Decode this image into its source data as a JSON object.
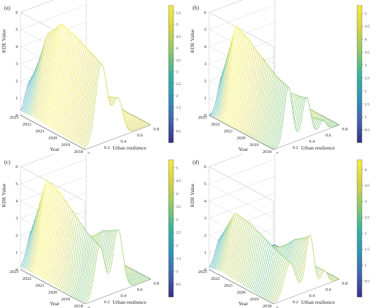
{
  "figure": {
    "panels": [
      "(a)",
      "(b)",
      "(c)",
      "(d)"
    ]
  },
  "colors": {
    "colormap": [
      "#3b2f86",
      "#4467b0",
      "#2f95b8",
      "#3bb39a",
      "#8dc86a",
      "#d8d242",
      "#f4ef3c"
    ],
    "axis": "#333333",
    "grid": "#c8c8c8"
  },
  "chart_data": [
    {
      "type": "surface3d",
      "panel_label": "(a)",
      "zlabel": "KDE Value",
      "xlabel": "Urban resilience",
      "ylabel": "Year",
      "x_ticks": [
        "0",
        "0.2",
        "0.4",
        "0.6",
        "0.8"
      ],
      "y_ticks": [
        "2018",
        "2019",
        "2020",
        "2021",
        "2022",
        "2023"
      ],
      "z_ticks": [
        "0",
        "1",
        "2",
        "3",
        "4",
        "5",
        "6"
      ],
      "xlim": [
        0,
        0.8
      ],
      "zlim": [
        0,
        6
      ],
      "colorbar_ticks": [
        "0.5",
        "1",
        "1.5",
        "2",
        "2.5",
        "3",
        "3.5",
        "4",
        "4.5",
        "5",
        "5.5"
      ],
      "colorbar_range": [
        0,
        5.8
      ],
      "series": [
        {
          "name": "2018",
          "peaks": [
            {
              "x": 0.2,
              "h": 4.6,
              "w": 0.07
            },
            {
              "x": 0.4,
              "h": 2.2,
              "w": 0.06
            }
          ]
        },
        {
          "name": "2019",
          "peaks": [
            {
              "x": 0.2,
              "h": 5.0,
              "w": 0.07
            },
            {
              "x": 0.4,
              "h": 1.9,
              "w": 0.06
            }
          ]
        },
        {
          "name": "2020",
          "peaks": [
            {
              "x": 0.19,
              "h": 5.5,
              "w": 0.07
            },
            {
              "x": 0.4,
              "h": 1.5,
              "w": 0.06
            }
          ]
        },
        {
          "name": "2021",
          "peaks": [
            {
              "x": 0.18,
              "h": 5.8,
              "w": 0.07
            },
            {
              "x": 0.38,
              "h": 1.2,
              "w": 0.06
            }
          ]
        },
        {
          "name": "2022",
          "peaks": [
            {
              "x": 0.17,
              "h": 4.8,
              "w": 0.07
            },
            {
              "x": 0.36,
              "h": 1.3,
              "w": 0.06
            }
          ]
        },
        {
          "name": "2023",
          "peaks": [
            {
              "x": 0.12,
              "h": 1.8,
              "w": 0.06
            },
            {
              "x": 0.28,
              "h": 1.0,
              "w": 0.06
            }
          ]
        }
      ]
    },
    {
      "type": "surface3d",
      "panel_label": "(b)",
      "zlabel": "KDE Value",
      "xlabel": "Urban resilience",
      "ylabel": "Year",
      "x_ticks": [
        "0",
        "0.2",
        "0.4",
        "0.6",
        "0.8"
      ],
      "y_ticks": [
        "2018",
        "2019",
        "2020",
        "2021",
        "2022",
        "2023"
      ],
      "z_ticks": [
        "0",
        "1",
        "2",
        "3",
        "4",
        "5",
        "6"
      ],
      "xlim": [
        0,
        0.8
      ],
      "zlim": [
        0,
        6
      ],
      "colorbar_ticks": [
        "0.5",
        "1",
        "1.5",
        "2",
        "2.5",
        "3",
        "3.5",
        "4",
        "4.5",
        "5"
      ],
      "colorbar_range": [
        0,
        5.3
      ],
      "series": [
        {
          "name": "2018",
          "peaks": [
            {
              "x": 0.18,
              "h": 3.3,
              "w": 0.05
            },
            {
              "x": 0.4,
              "h": 2.3,
              "w": 0.05
            },
            {
              "x": 0.6,
              "h": 0.6,
              "w": 0.04
            }
          ]
        },
        {
          "name": "2019",
          "peaks": [
            {
              "x": 0.18,
              "h": 3.6,
              "w": 0.05
            },
            {
              "x": 0.38,
              "h": 2.2,
              "w": 0.05
            },
            {
              "x": 0.58,
              "h": 0.5,
              "w": 0.04
            }
          ]
        },
        {
          "name": "2020",
          "peaks": [
            {
              "x": 0.18,
              "h": 4.2,
              "w": 0.05
            },
            {
              "x": 0.36,
              "h": 1.6,
              "w": 0.05
            },
            {
              "x": 0.58,
              "h": 0.6,
              "w": 0.04
            }
          ]
        },
        {
          "name": "2021",
          "peaks": [
            {
              "x": 0.17,
              "h": 4.9,
              "w": 0.05
            },
            {
              "x": 0.35,
              "h": 1.2,
              "w": 0.05
            },
            {
              "x": 0.56,
              "h": 0.7,
              "w": 0.04
            }
          ]
        },
        {
          "name": "2022",
          "peaks": [
            {
              "x": 0.17,
              "h": 5.3,
              "w": 0.05
            },
            {
              "x": 0.33,
              "h": 1.0,
              "w": 0.05
            },
            {
              "x": 0.55,
              "h": 0.6,
              "w": 0.04
            }
          ]
        },
        {
          "name": "2023",
          "peaks": [
            {
              "x": 0.16,
              "h": 2.0,
              "w": 0.05
            },
            {
              "x": 0.3,
              "h": 0.9,
              "w": 0.05
            },
            {
              "x": 0.5,
              "h": 0.4,
              "w": 0.04
            }
          ]
        }
      ]
    },
    {
      "type": "surface3d",
      "panel_label": "(c)",
      "zlabel": "KDE Value",
      "xlabel": "Urban resilience",
      "ylabel": "Year",
      "x_ticks": [
        "0",
        "0.2",
        "0.4",
        "0.6",
        "0.8"
      ],
      "y_ticks": [
        "2018",
        "2019",
        "2020",
        "2021",
        "2022",
        "2023"
      ],
      "z_ticks": [
        "0",
        "1",
        "2",
        "3",
        "4",
        "5",
        "6"
      ],
      "xlim": [
        0,
        0.8
      ],
      "zlim": [
        0,
        6
      ],
      "colorbar_ticks": [
        "0.5",
        "1",
        "1.5",
        "2",
        "2.5",
        "3",
        "3.5",
        "4",
        "4.5",
        "5"
      ],
      "colorbar_range": [
        0,
        5.3
      ],
      "series": [
        {
          "name": "2018",
          "peaks": [
            {
              "x": 0.18,
              "h": 3.0,
              "w": 0.06
            },
            {
              "x": 0.4,
              "h": 3.6,
              "w": 0.06
            }
          ]
        },
        {
          "name": "2019",
          "peaks": [
            {
              "x": 0.18,
              "h": 3.4,
              "w": 0.06
            },
            {
              "x": 0.38,
              "h": 3.2,
              "w": 0.06
            }
          ]
        },
        {
          "name": "2020",
          "peaks": [
            {
              "x": 0.17,
              "h": 4.2,
              "w": 0.06
            },
            {
              "x": 0.36,
              "h": 2.4,
              "w": 0.06
            }
          ]
        },
        {
          "name": "2021",
          "peaks": [
            {
              "x": 0.16,
              "h": 5.0,
              "w": 0.06
            },
            {
              "x": 0.34,
              "h": 1.6,
              "w": 0.06
            }
          ]
        },
        {
          "name": "2022",
          "peaks": [
            {
              "x": 0.16,
              "h": 5.3,
              "w": 0.06
            },
            {
              "x": 0.32,
              "h": 1.2,
              "w": 0.06
            }
          ]
        },
        {
          "name": "2023",
          "peaks": [
            {
              "x": 0.14,
              "h": 2.0,
              "w": 0.06
            },
            {
              "x": 0.28,
              "h": 0.8,
              "w": 0.06
            }
          ]
        }
      ]
    },
    {
      "type": "surface3d",
      "panel_label": "(d)",
      "zlabel": "KDE Value",
      "xlabel": "Urban resilience",
      "ylabel": "Year",
      "x_ticks": [
        "0",
        "0.2",
        "0.4",
        "0.6",
        "0.8"
      ],
      "y_ticks": [
        "2018",
        "2019",
        "2020",
        "2021",
        "2022",
        "2023"
      ],
      "z_ticks": [
        "0",
        "1",
        "2",
        "3",
        "4",
        "5",
        "6"
      ],
      "xlim": [
        0,
        0.8
      ],
      "zlim": [
        0,
        6
      ],
      "colorbar_ticks": [
        "0.5",
        "1",
        "1.5",
        "2",
        "2.5",
        "3",
        "3.5",
        "4"
      ],
      "colorbar_range": [
        0,
        4.3
      ],
      "series": [
        {
          "name": "2018",
          "peaks": [
            {
              "x": 0.2,
              "h": 2.0,
              "w": 0.07
            },
            {
              "x": 0.44,
              "h": 3.2,
              "w": 0.05
            },
            {
              "x": 0.62,
              "h": 0.8,
              "w": 0.04
            }
          ]
        },
        {
          "name": "2019",
          "peaks": [
            {
              "x": 0.2,
              "h": 2.3,
              "w": 0.07
            },
            {
              "x": 0.42,
              "h": 2.6,
              "w": 0.05
            },
            {
              "x": 0.6,
              "h": 0.9,
              "w": 0.04
            }
          ]
        },
        {
          "name": "2020",
          "peaks": [
            {
              "x": 0.18,
              "h": 2.8,
              "w": 0.07
            },
            {
              "x": 0.4,
              "h": 1.8,
              "w": 0.05
            },
            {
              "x": 0.58,
              "h": 0.7,
              "w": 0.04
            }
          ]
        },
        {
          "name": "2021",
          "peaks": [
            {
              "x": 0.17,
              "h": 3.2,
              "w": 0.07
            },
            {
              "x": 0.38,
              "h": 1.4,
              "w": 0.05
            },
            {
              "x": 0.56,
              "h": 0.6,
              "w": 0.04
            }
          ]
        },
        {
          "name": "2022",
          "peaks": [
            {
              "x": 0.16,
              "h": 3.4,
              "w": 0.07
            },
            {
              "x": 0.35,
              "h": 1.2,
              "w": 0.05
            },
            {
              "x": 0.54,
              "h": 0.5,
              "w": 0.04
            }
          ]
        },
        {
          "name": "2023",
          "peaks": [
            {
              "x": 0.14,
              "h": 1.6,
              "w": 0.06
            },
            {
              "x": 0.3,
              "h": 0.8,
              "w": 0.05
            },
            {
              "x": 0.5,
              "h": 0.4,
              "w": 0.04
            }
          ]
        }
      ]
    }
  ]
}
